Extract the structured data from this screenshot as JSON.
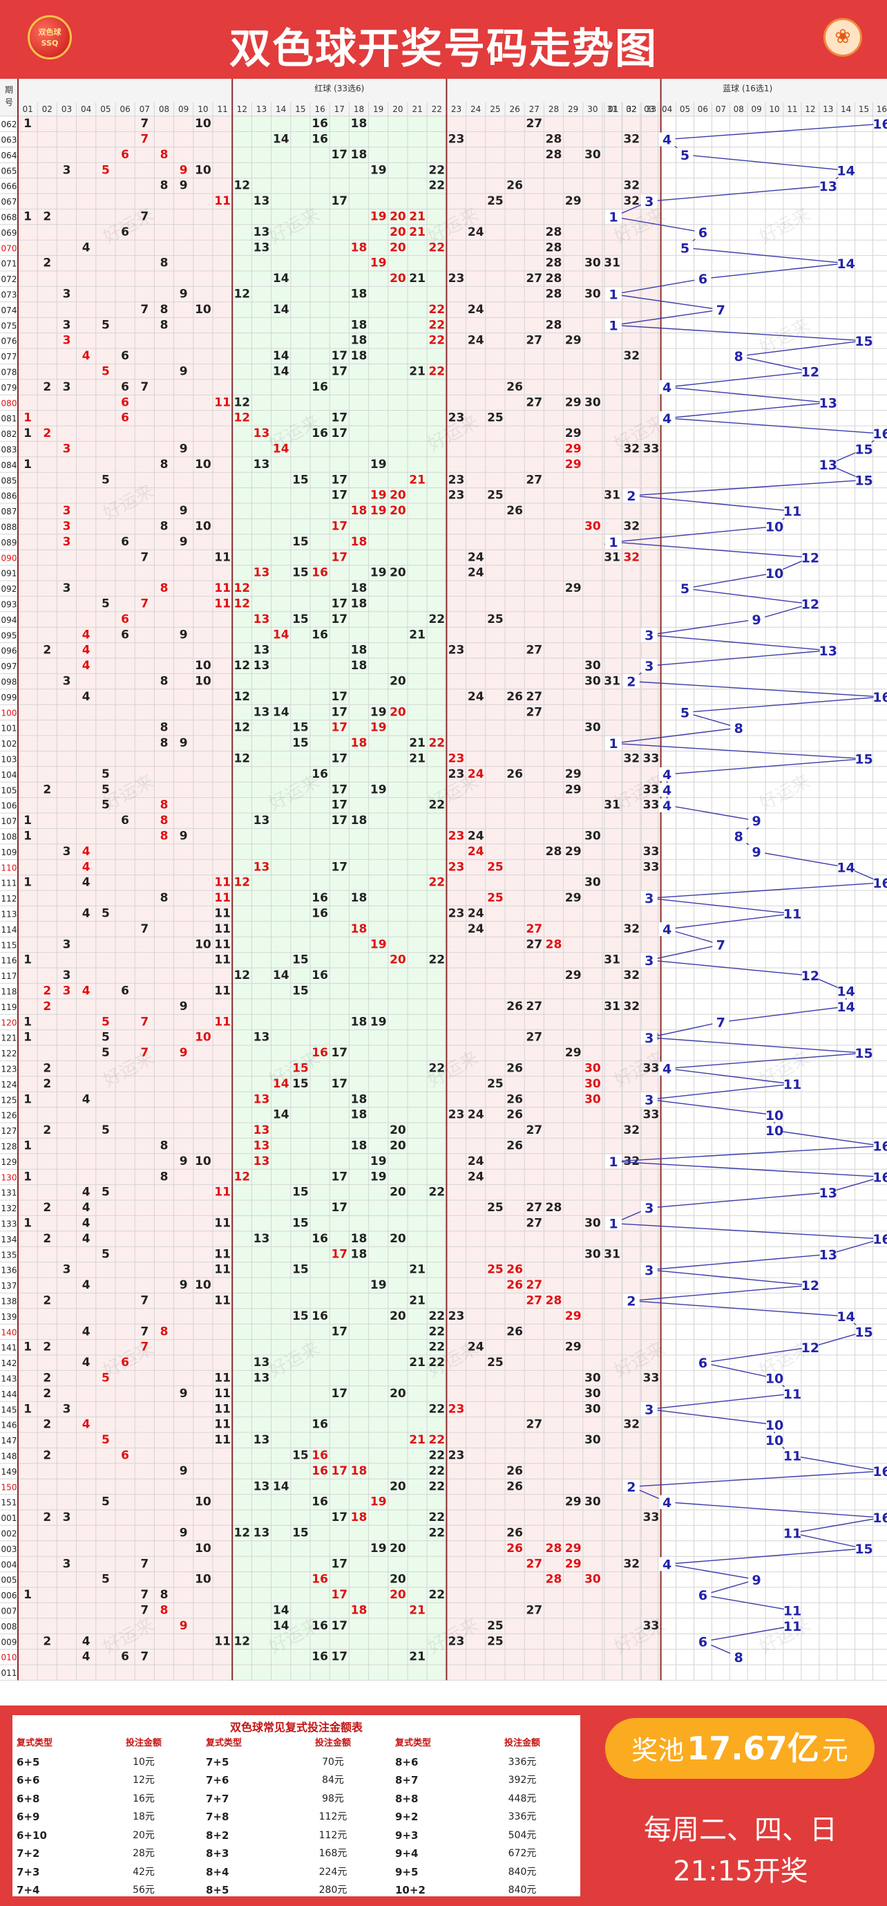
{
  "header": {
    "title": "双色球开奖号码走势图",
    "logo_line1": "双色球",
    "logo_line2": "SSQ"
  },
  "table": {
    "col_issue_header": "期号",
    "red_header": "红球 (33选6)",
    "blue_header": "蓝球 (16选1)",
    "watermark": "好运来"
  },
  "chart_data": {
    "type": "table",
    "issues": [
      "062",
      "063",
      "064",
      "065",
      "066",
      "067",
      "068",
      "069",
      "070",
      "071",
      "072",
      "073",
      "074",
      "075",
      "076",
      "077",
      "078",
      "079",
      "080",
      "081",
      "082",
      "083",
      "084",
      "085",
      "086",
      "087",
      "088",
      "089",
      "090",
      "091",
      "092",
      "093",
      "094",
      "095",
      "096",
      "097",
      "098",
      "099",
      "100",
      "101",
      "102",
      "103",
      "104",
      "105",
      "106",
      "107",
      "108",
      "109",
      "110",
      "111",
      "112",
      "113",
      "114",
      "115",
      "116",
      "117",
      "118",
      "119",
      "120",
      "121",
      "122",
      "123",
      "124",
      "125",
      "126",
      "127",
      "128",
      "129",
      "130",
      "131",
      "132",
      "133",
      "134",
      "135",
      "136",
      "137",
      "138",
      "139",
      "140",
      "141",
      "142",
      "143",
      "144",
      "145",
      "146",
      "147",
      "148",
      "149",
      "150",
      "151",
      "001",
      "002",
      "003",
      "004",
      "005",
      "006",
      "007",
      "008",
      "009",
      "010",
      "011"
    ],
    "red_rows": [
      [
        1,
        7,
        10,
        16,
        18,
        27
      ],
      [
        7,
        14,
        16,
        28,
        32,
        23
      ],
      [
        6,
        8,
        17,
        18,
        28,
        30
      ],
      [
        3,
        5,
        9,
        10,
        19,
        22
      ],
      [
        8,
        9,
        12,
        22,
        26,
        32
      ],
      [
        11,
        13,
        17,
        25,
        29,
        32
      ],
      [
        1,
        2,
        7,
        19,
        20,
        21
      ],
      [
        6,
        13,
        20,
        21,
        24,
        28
      ],
      [
        4,
        13,
        18,
        20,
        22,
        28
      ],
      [
        2,
        8,
        19,
        28,
        30,
        31
      ],
      [
        14,
        20,
        21,
        23,
        27,
        28
      ],
      [
        3,
        9,
        12,
        18,
        28,
        30
      ],
      [
        7,
        8,
        10,
        14,
        22,
        24
      ],
      [
        3,
        5,
        8,
        18,
        22,
        28
      ],
      [
        3,
        18,
        22,
        24,
        27,
        29
      ],
      [
        4,
        6,
        14,
        17,
        18,
        32
      ],
      [
        5,
        9,
        14,
        17,
        21,
        22
      ],
      [
        2,
        3,
        6,
        7,
        16,
        26
      ],
      [
        6,
        11,
        12,
        27,
        29,
        30
      ],
      [
        1,
        6,
        12,
        17,
        23,
        25
      ],
      [
        1,
        2,
        13,
        16,
        17,
        29
      ],
      [
        3,
        9,
        14,
        29,
        32,
        33
      ],
      [
        8,
        10,
        13,
        19,
        29,
        1
      ],
      [
        5,
        15,
        17,
        21,
        23,
        27
      ],
      [
        17,
        19,
        20,
        23,
        25,
        31
      ],
      [
        3,
        9,
        18,
        19,
        20,
        26
      ],
      [
        3,
        8,
        10,
        17,
        30,
        32
      ],
      [
        3,
        6,
        9,
        15,
        18,
        31
      ],
      [
        7,
        11,
        17,
        24,
        31,
        32
      ],
      [
        13,
        15,
        16,
        19,
        20,
        24
      ],
      [
        3,
        8,
        11,
        12,
        18,
        29
      ],
      [
        5,
        7,
        11,
        12,
        17,
        18
      ],
      [
        6,
        13,
        15,
        17,
        22,
        25
      ],
      [
        4,
        6,
        9,
        14,
        16,
        21
      ],
      [
        2,
        4,
        13,
        18,
        23,
        27
      ],
      [
        4,
        10,
        12,
        13,
        18,
        30
      ],
      [
        8,
        10,
        20,
        30,
        31,
        3
      ],
      [
        4,
        12,
        17,
        24,
        26,
        27
      ],
      [
        13,
        14,
        17,
        19,
        20,
        27
      ],
      [
        8,
        12,
        15,
        17,
        19,
        30
      ],
      [
        8,
        9,
        15,
        18,
        21,
        22
      ],
      [
        12,
        17,
        21,
        23,
        32,
        33
      ],
      [
        5,
        16,
        23,
        24,
        26,
        29
      ],
      [
        2,
        5,
        17,
        19,
        29,
        33
      ],
      [
        5,
        8,
        17,
        22,
        31,
        33
      ],
      [
        1,
        6,
        8,
        13,
        17,
        18
      ],
      [
        1,
        8,
        9,
        23,
        24,
        30
      ],
      [
        3,
        4,
        24,
        28,
        29,
        33
      ],
      [
        4,
        13,
        17,
        23,
        25,
        33
      ],
      [
        1,
        4,
        11,
        12,
        22,
        30
      ],
      [
        8,
        11,
        16,
        18,
        25,
        29
      ],
      [
        4,
        5,
        11,
        16,
        23,
        24
      ],
      [
        7,
        11,
        18,
        24,
        27,
        32
      ],
      [
        3,
        10,
        11,
        19,
        27,
        28
      ],
      [
        1,
        11,
        15,
        20,
        22,
        31
      ],
      [
        3,
        12,
        14,
        16,
        29,
        32
      ],
      [
        2,
        3,
        4,
        6,
        11,
        15
      ],
      [
        2,
        9,
        26,
        27,
        31,
        32
      ],
      [
        1,
        5,
        7,
        11,
        18,
        19
      ],
      [
        1,
        5,
        10,
        13,
        27,
        33
      ],
      [
        5,
        7,
        9,
        16,
        17,
        29
      ],
      [
        2,
        15,
        22,
        26,
        30,
        33
      ],
      [
        2,
        14,
        15,
        17,
        25,
        30
      ],
      [
        1,
        4,
        13,
        18,
        26,
        30
      ],
      [
        14,
        18,
        23,
        24,
        26,
        33
      ],
      [
        2,
        5,
        13,
        20,
        27,
        32
      ],
      [
        1,
        8,
        13,
        18,
        20,
        26
      ],
      [
        9,
        10,
        13,
        19,
        24,
        32
      ],
      [
        1,
        8,
        12,
        17,
        19,
        24
      ],
      [
        4,
        5,
        11,
        15,
        20,
        22
      ],
      [
        2,
        4,
        17,
        25,
        27,
        28
      ],
      [
        1,
        4,
        11,
        15,
        27,
        30
      ],
      [
        2,
        4,
        13,
        16,
        18,
        20
      ],
      [
        5,
        11,
        17,
        18,
        30,
        31
      ],
      [
        3,
        11,
        15,
        21,
        25,
        26
      ],
      [
        4,
        9,
        10,
        19,
        26,
        27
      ],
      [
        2,
        7,
        11,
        21,
        27,
        28
      ],
      [
        15,
        16,
        20,
        22,
        23,
        29
      ],
      [
        4,
        7,
        8,
        17,
        22,
        26
      ],
      [
        1,
        2,
        7,
        22,
        24,
        29
      ],
      [
        4,
        6,
        13,
        21,
        22,
        25
      ],
      [
        2,
        5,
        11,
        13,
        30,
        33
      ],
      [
        2,
        9,
        11,
        17,
        20,
        30
      ],
      [
        1,
        3,
        11,
        22,
        23,
        30
      ],
      [
        2,
        4,
        11,
        16,
        27,
        32
      ],
      [
        5,
        11,
        13,
        21,
        22,
        30
      ],
      [
        2,
        6,
        15,
        16,
        22,
        23
      ],
      [
        9,
        16,
        17,
        18,
        22,
        26
      ],
      [
        13,
        14,
        20,
        22,
        26,
        32
      ],
      [
        5,
        10,
        16,
        19,
        29,
        30
      ],
      [
        2,
        3,
        17,
        18,
        22,
        33
      ],
      [
        9,
        12,
        13,
        15,
        22,
        26
      ],
      [
        10,
        19,
        20,
        26,
        28,
        29
      ],
      [
        3,
        7,
        17,
        27,
        29,
        32
      ],
      [
        5,
        10,
        16,
        20,
        28,
        30
      ],
      [
        1,
        7,
        8,
        17,
        20,
        22
      ],
      [
        7,
        8,
        14,
        18,
        21,
        27
      ],
      [
        9,
        14,
        16,
        17,
        25,
        33
      ],
      [
        2,
        4,
        11,
        12,
        23,
        25
      ],
      [
        4,
        6,
        7,
        16,
        17,
        21
      ],
      []
    ],
    "red_repeat": [
      [],
      [
        7
      ],
      [
        6,
        8
      ],
      [
        5,
        9
      ],
      [],
      [
        11
      ],
      [
        19,
        20,
        21
      ],
      [
        20,
        21
      ],
      [
        18,
        20,
        22
      ],
      [
        19
      ],
      [
        20
      ],
      [],
      [
        22
      ],
      [
        22
      ],
      [
        3,
        22
      ],
      [
        4
      ],
      [
        5,
        22
      ],
      [],
      [
        6,
        11
      ],
      [
        1,
        6,
        12
      ],
      [
        2,
        13
      ],
      [
        3,
        14,
        29
      ],
      [
        29
      ],
      [
        21
      ],
      [
        19,
        20
      ],
      [
        3,
        18,
        19,
        20
      ],
      [
        3,
        17,
        30
      ],
      [
        3,
        18,
        31
      ],
      [
        17,
        32
      ],
      [
        13,
        16
      ],
      [
        8,
        11,
        12
      ],
      [
        7,
        11,
        12
      ],
      [
        6,
        13
      ],
      [
        4,
        14
      ],
      [
        4
      ],
      [
        4
      ],
      [],
      [],
      [
        20
      ],
      [
        17,
        19
      ],
      [
        18,
        22
      ],
      [
        23
      ],
      [
        24
      ],
      [],
      [
        8
      ],
      [
        8
      ],
      [
        8,
        23
      ],
      [
        4,
        24
      ],
      [
        4,
        13,
        23,
        25
      ],
      [
        11,
        12,
        22
      ],
      [
        11,
        25
      ],
      [
        26
      ],
      [
        18,
        27
      ],
      [
        19,
        28
      ],
      [
        20
      ],
      [],
      [
        2,
        3,
        4
      ],
      [
        2
      ],
      [
        5,
        7,
        11
      ],
      [
        10
      ],
      [
        7,
        9,
        16
      ],
      [
        15,
        30
      ],
      [
        14,
        30
      ],
      [
        13,
        30
      ],
      [],
      [
        13
      ],
      [
        13
      ],
      [
        13
      ],
      [
        12
      ],
      [
        11
      ],
      [],
      [],
      [
        15
      ],
      [
        16,
        17
      ],
      [
        25,
        26
      ],
      [
        26,
        27
      ],
      [
        27,
        28
      ],
      [
        29
      ],
      [
        8
      ],
      [
        7
      ],
      [
        6
      ],
      [
        5
      ],
      [],
      [
        23
      ],
      [
        4
      ],
      [
        5,
        21,
        22
      ],
      [
        6,
        16
      ],
      [
        16,
        17,
        18
      ],
      [],
      [
        19
      ],
      [
        18
      ],
      [],
      [
        26,
        28,
        29
      ],
      [
        27,
        29
      ],
      [
        16,
        28,
        30
      ],
      [
        17,
        20
      ],
      [
        8,
        18,
        21
      ],
      [
        9
      ],
      [],
      [],
      []
    ],
    "blue": [
      16,
      4,
      5,
      14,
      13,
      3,
      1,
      6,
      5,
      14,
      6,
      1,
      7,
      1,
      15,
      8,
      12,
      4,
      13,
      4,
      16,
      15,
      13,
      15,
      2,
      11,
      10,
      1,
      12,
      10,
      5,
      12,
      9,
      3,
      13,
      3,
      2,
      16,
      5,
      8,
      1,
      15,
      4,
      4,
      4,
      9,
      8,
      9,
      14,
      16,
      3,
      11,
      4,
      7,
      3,
      12,
      14,
      14,
      7,
      3,
      15,
      4,
      11,
      3,
      10,
      10,
      16,
      1,
      16,
      13,
      3,
      1,
      16,
      13,
      3,
      12,
      2,
      14,
      15,
      12,
      6,
      10,
      11,
      3,
      10,
      10,
      11,
      16,
      2,
      4,
      16,
      11,
      15,
      4,
      9,
      6,
      11,
      11,
      6,
      8
    ]
  },
  "prices": {
    "title": "双色球常见复式投注金额表",
    "col_type": "复式类型",
    "col_amount": "投注金额",
    "rows": [
      [
        "6+5",
        "10元",
        "7+5",
        "70元",
        "8+6",
        "336元"
      ],
      [
        "6+6",
        "12元",
        "7+6",
        "84元",
        "8+7",
        "392元"
      ],
      [
        "6+8",
        "16元",
        "7+7",
        "98元",
        "8+8",
        "448元"
      ],
      [
        "6+9",
        "18元",
        "7+8",
        "112元",
        "9+2",
        "336元"
      ],
      [
        "6+10",
        "20元",
        "8+2",
        "112元",
        "9+3",
        "504元"
      ],
      [
        "7+2",
        "28元",
        "8+3",
        "168元",
        "9+4",
        "672元"
      ],
      [
        "7+3",
        "42元",
        "8+4",
        "224元",
        "9+5",
        "840元"
      ],
      [
        "7+4",
        "56元",
        "8+5",
        "280元",
        "10+2",
        "840元"
      ]
    ]
  },
  "pool": {
    "label": "奖池",
    "amount": "17.67亿",
    "unit": "元"
  },
  "draw": {
    "line1": "每周二、四、日",
    "line2": "21:15开奖"
  },
  "colors": {
    "red": "#e01010",
    "blue": "#2222aa",
    "header": "#e23c3c"
  }
}
